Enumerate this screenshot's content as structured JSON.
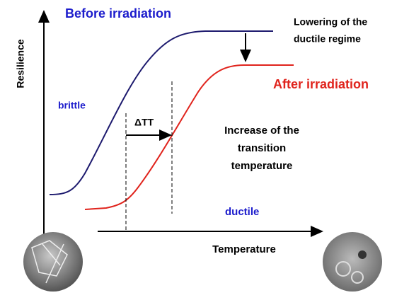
{
  "labels": {
    "before": "Before irradiation",
    "after": "After irradiation",
    "lowering": [
      "Lowering of the",
      "ductile regime"
    ],
    "brittle": "brittle",
    "delta": "ΔTT",
    "increase": [
      "Increase of the",
      "transition",
      "temperature"
    ],
    "ductile": "ductile",
    "y_axis": "Resilience",
    "x_axis": "Temperature"
  }
}
